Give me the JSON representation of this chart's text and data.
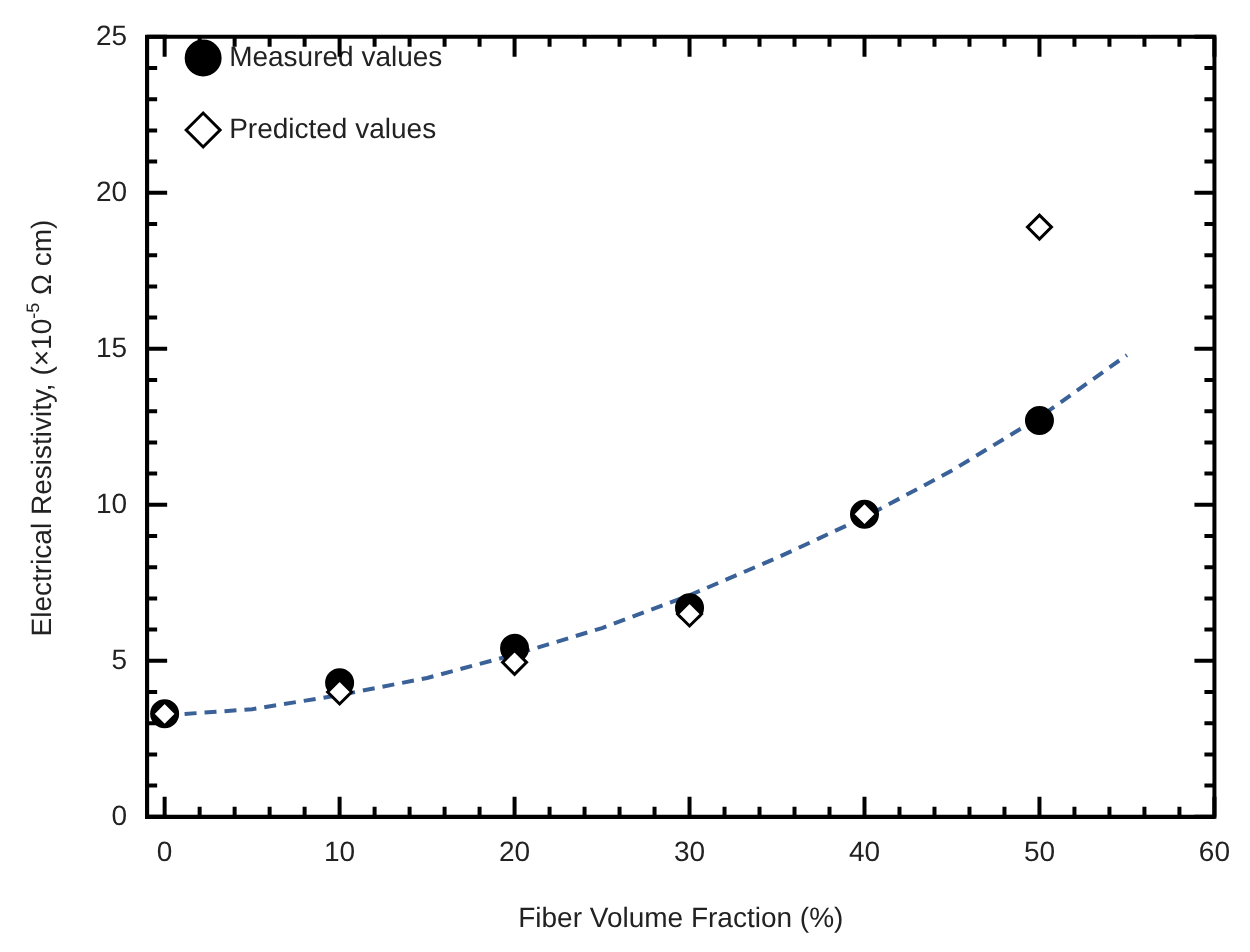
{
  "chart_data": {
    "type": "scatter",
    "xlabel": "Fiber Volume Fraction (%)",
    "ylabel": "Electrical Resistivity, (×10$^{-5}$ Ω cm)",
    "xlim": [
      -1,
      60
    ],
    "ylim": [
      0,
      25
    ],
    "xticks": [
      0,
      {
        "value": 2,
        "label": null
      },
      {
        "value": 4,
        "label": null
      },
      {
        "value": 6,
        "label": null
      },
      {
        "value": 8,
        "label": null
      },
      10,
      {
        "value": 12,
        "label": null
      },
      {
        "value": 14,
        "label": null
      },
      {
        "value": 16,
        "label": null
      },
      {
        "value": 18,
        "label": null
      },
      20,
      {
        "value": 22,
        "label": null
      },
      {
        "value": 24,
        "label": null
      },
      {
        "value": 26,
        "label": null
      },
      {
        "value": 28,
        "label": null
      },
      30,
      {
        "value": 32,
        "label": null
      },
      {
        "value": 34,
        "label": null
      },
      {
        "value": 36,
        "label": null
      },
      {
        "value": 38,
        "label": null
      },
      40,
      {
        "value": 42,
        "label": null
      },
      {
        "value": 44,
        "label": null
      },
      {
        "value": 46,
        "label": null
      },
      {
        "value": 48,
        "label": null
      },
      50,
      {
        "value": 52,
        "label": null
      },
      {
        "value": 54,
        "label": null
      },
      {
        "value": 56,
        "label": null
      },
      {
        "value": 58,
        "label": null
      },
      60
    ],
    "yticks": [
      0,
      {
        "value": 1,
        "label": null
      },
      {
        "value": 2,
        "label": null
      },
      {
        "value": 3,
        "label": null
      },
      {
        "value": 4,
        "label": null
      },
      5,
      {
        "value": 6,
        "label": null
      },
      {
        "value": 7,
        "label": null
      },
      {
        "value": 8,
        "label": null
      },
      {
        "value": 9,
        "label": null
      },
      10,
      {
        "value": 11,
        "label": null
      },
      {
        "value": 12,
        "label": null
      },
      {
        "value": 13,
        "label": null
      },
      {
        "value": 14,
        "label": null
      },
      15,
      {
        "value": 16,
        "label": null
      },
      {
        "value": 17,
        "label": null
      },
      {
        "value": 18,
        "label": null
      },
      {
        "value": 19,
        "label": null
      },
      20,
      {
        "value": 21,
        "label": null
      },
      {
        "value": 22,
        "label": null
      },
      {
        "value": 23,
        "label": null
      },
      {
        "value": 24,
        "label": null
      },
      25
    ],
    "grid": false,
    "legend": "top left",
    "x": [
      0,
      10,
      20,
      30,
      40,
      50
    ],
    "series": [
      {
        "type": "line",
        "color": "#3a6198",
        "marker": "none",
        "line_style": "dashed",
        "x": [
          0,
          5,
          10,
          15,
          20,
          25,
          30,
          35,
          40,
          45,
          50,
          55
        ],
        "values": [
          3.25,
          3.45,
          3.9,
          4.45,
          5.2,
          6.05,
          7.1,
          8.3,
          9.6,
          11.1,
          12.8,
          14.8
        ]
      },
      {
        "name": "Measured values",
        "color": "#000000",
        "marker": "circle",
        "values": [
          3.3,
          4.3,
          5.4,
          6.7,
          9.7,
          12.7
        ]
      },
      {
        "name": "Predicted values",
        "color": "#000000",
        "marker": "diamond",
        "values": [
          3.3,
          4.0,
          4.95,
          6.5,
          9.7,
          18.9
        ]
      }
    ]
  }
}
